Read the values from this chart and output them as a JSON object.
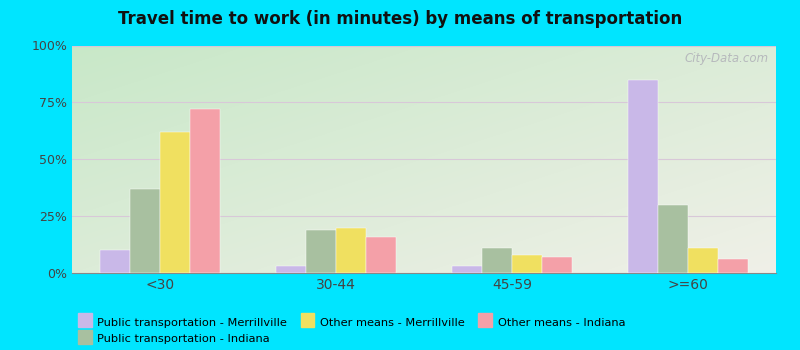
{
  "title": "Travel time to work (in minutes) by means of transportation",
  "categories": [
    "<30",
    "30-44",
    "45-59",
    ">=60"
  ],
  "series": {
    "Public transportation - Merrillville": [
      10,
      3,
      3,
      85
    ],
    "Public transportation - Indiana": [
      37,
      19,
      11,
      30
    ],
    "Other means - Merrillville": [
      62,
      20,
      8,
      11
    ],
    "Other means - Indiana": [
      72,
      16,
      7,
      6
    ]
  },
  "colors": {
    "Public transportation - Merrillville": "#c9b8e8",
    "Public transportation - Indiana": "#a8c0a0",
    "Other means - Merrillville": "#f0e060",
    "Other means - Indiana": "#f4a0a8"
  },
  "ylim": [
    0,
    100
  ],
  "yticks": [
    0,
    25,
    50,
    75,
    100
  ],
  "ytick_labels": [
    "0%",
    "25%",
    "50%",
    "75%",
    "100%"
  ],
  "bg_color_topleft": "#c8e8c8",
  "bg_color_bottomright": "#f0f0e8",
  "outer_background": "#00e5ff",
  "watermark": "City-Data.com",
  "legend_order": [
    "Public transportation - Merrillville",
    "Public transportation - Indiana",
    "Other means - Merrillville",
    "Other means - Indiana"
  ]
}
